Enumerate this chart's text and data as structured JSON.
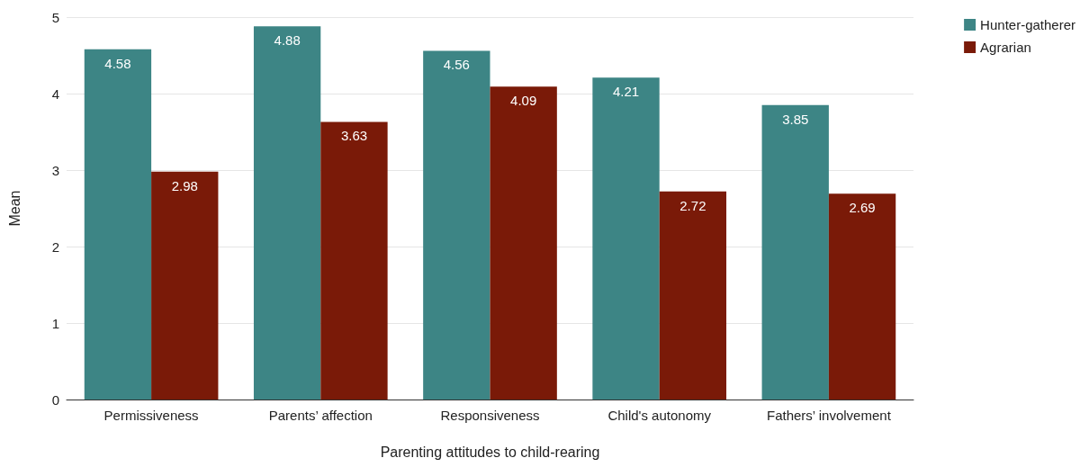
{
  "chart_data": {
    "type": "bar",
    "xlabel": "Parenting attitudes to child-rearing",
    "ylabel": "Mean",
    "categories": [
      "Permissiveness",
      "Parents’ affection",
      "Responsiveness",
      "Child's autonomy",
      "Fathers’ involvement"
    ],
    "series": [
      {
        "name": "Hunter-gatherer",
        "color": "#3d8585",
        "values": [
          4.58,
          4.88,
          4.56,
          4.21,
          3.85
        ]
      },
      {
        "name": "Agrarian",
        "color": "#7a1a08",
        "values": [
          2.98,
          3.63,
          4.09,
          2.72,
          2.69
        ]
      }
    ],
    "ylim": [
      0,
      5
    ],
    "yticks": [
      0,
      1,
      2,
      3,
      4,
      5
    ],
    "grid": "y",
    "legend": "top right",
    "data_labels": true
  }
}
